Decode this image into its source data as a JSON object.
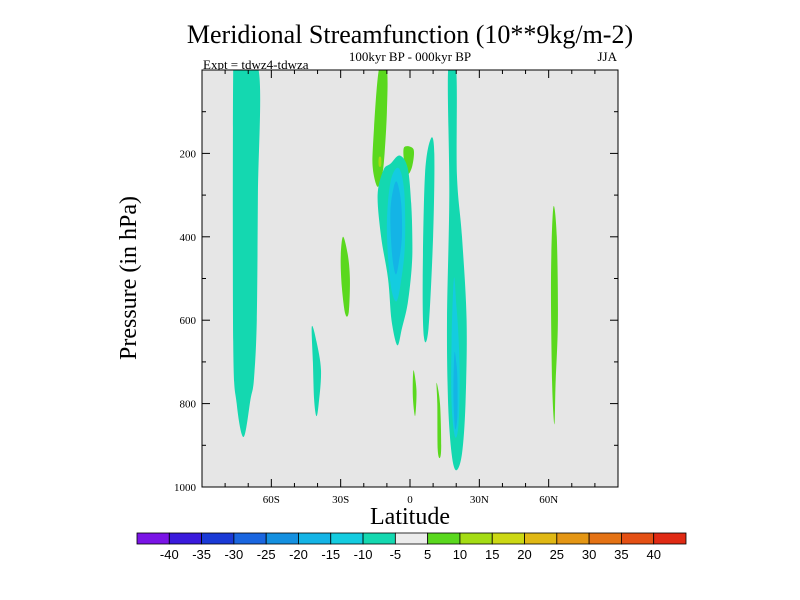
{
  "chart_data": {
    "type": "heatmap",
    "title": "Meridional Streamfunction (10**9kg/m-2)",
    "subtitle_center": "100kyr BP - 000kyr BP",
    "subtitle_left": "Expt = tdwz4-tdwza",
    "subtitle_right": "JJA",
    "xlabel": "Latitude",
    "ylabel": "Pressure (in hPa)",
    "xlim": [
      -90,
      90
    ],
    "ylim": [
      1000,
      0
    ],
    "x_ticks": [
      {
        "value": -60,
        "label": "60S"
      },
      {
        "value": -30,
        "label": "30S"
      },
      {
        "value": 0,
        "label": "0"
      },
      {
        "value": 30,
        "label": "30N"
      },
      {
        "value": 60,
        "label": "60N"
      }
    ],
    "y_ticks": [
      {
        "value": 200,
        "label": "200"
      },
      {
        "value": 400,
        "label": "400"
      },
      {
        "value": 600,
        "label": "600"
      },
      {
        "value": 800,
        "label": "800"
      },
      {
        "value": 1000,
        "label": "1000"
      }
    ],
    "background_color": "#e6e6e6",
    "colorbar": {
      "levels": [
        "-40",
        "-35",
        "-30",
        "-25",
        "-20",
        "-15",
        "-10",
        "-5",
        "5",
        "10",
        "15",
        "20",
        "25",
        "30",
        "35",
        "40"
      ],
      "colors": [
        "#7a14e6",
        "#3a1adc",
        "#1a3ad6",
        "#1a66e0",
        "#1490e0",
        "#14b4e6",
        "#14cce0",
        "#14d8b0",
        "#ececec",
        "#5ad81e",
        "#a4dc14",
        "#ccd814",
        "#e0b814",
        "#e49614",
        "#e47214",
        "#e45014",
        "#e02a14"
      ]
    },
    "regions": [
      {
        "name": "band-60s-neg",
        "value": -10,
        "color": "#14d8b0",
        "lat": [
          -75.5,
          -65.5,
          -65.8,
          -66.3,
          -67.5,
          -69.0,
          -72.0,
          -75.0,
          -76.5,
          -76.5
        ],
        "p": [
          0,
          0,
          300,
          600,
          740,
          790,
          880,
          800,
          650,
          0
        ]
      },
      {
        "name": "sh-midlat-neg",
        "value": -10,
        "color": "#14d8b0",
        "lat": [
          -42.5,
          -40.5,
          -38.5,
          -39.5,
          -40.5,
          -41.5,
          -42.0
        ],
        "p": [
          615,
          650,
          720,
          800,
          830,
          790,
          700
        ]
      },
      {
        "name": "sh-midlat-pos",
        "value": 10,
        "color": "#5ad81e",
        "lat": [
          -29.0,
          -27.0,
          -26.0,
          -26.5,
          -28.0,
          -29.5,
          -30.0
        ],
        "p": [
          400,
          440,
          500,
          580,
          585,
          520,
          450
        ]
      },
      {
        "name": "upper-trop-pos",
        "value": 10,
        "color": "#5ad81e",
        "lat": [
          -13.5,
          -10.0,
          -10.0,
          -11.0,
          -12.0,
          -14.0,
          -16.0,
          -16.0
        ],
        "p": [
          0,
          0,
          100,
          200,
          250,
          280,
          240,
          180
        ]
      },
      {
        "name": "upper-trop-pos-core",
        "value": 15,
        "color": "#a4dc14",
        "lat": [
          -13.5,
          -12.5,
          -12.5,
          -13.5
        ],
        "p": [
          210,
          210,
          230,
          230
        ]
      },
      {
        "name": "small-pos-cell",
        "value": 10,
        "color": "#5ad81e",
        "lat": [
          -2.5,
          1.5,
          1.0,
          -1.0,
          -2.5
        ],
        "p": [
          185,
          190,
          230,
          250,
          220
        ]
      },
      {
        "name": "equatorial-neg",
        "value": -10,
        "color": "#14d8b0",
        "lat": [
          -4.5,
          -1.0,
          0.5,
          1.0,
          0.8,
          -1.0,
          -3.5,
          -5.5,
          -8.0,
          -9.5,
          -12.5,
          -14.0,
          -11.5,
          -8.5
        ],
        "p": [
          205,
          235,
          320,
          400,
          470,
          560,
          620,
          660,
          600,
          500,
          400,
          300,
          240,
          225
        ]
      },
      {
        "name": "equatorial-neg-inner",
        "value": -15,
        "color": "#14cce0",
        "lat": [
          -5.0,
          -2.5,
          -2.2,
          -4.0,
          -6.0,
          -8.5,
          -10.0,
          -8.5
        ],
        "p": [
          235,
          290,
          420,
          510,
          555,
          510,
          380,
          270
        ]
      },
      {
        "name": "equatorial-neg-core",
        "value": -20,
        "color": "#14b4e6",
        "lat": [
          -5.5,
          -3.8,
          -3.5,
          -4.8,
          -6.2,
          -7.8,
          -8.5,
          -7.0
        ],
        "p": [
          270,
          320,
          400,
          460,
          490,
          440,
          340,
          280
        ]
      },
      {
        "name": "eq-north-neg",
        "value": -10,
        "color": "#14d8b0",
        "lat": [
          9.0,
          10.5,
          10.0,
          8.0,
          6.0,
          5.5,
          6.5
        ],
        "p": [
          165,
          200,
          400,
          620,
          640,
          500,
          250
        ]
      },
      {
        "name": "eq-lower-pos",
        "value": 10,
        "color": "#5ad81e",
        "lat": [
          1.5,
          2.8,
          2.2,
          1.2
        ],
        "p": [
          720,
          770,
          830,
          780
        ]
      },
      {
        "name": "nh-subtrop-neg",
        "value": -10,
        "color": "#14d8b0",
        "lat": [
          16.5,
          20.0,
          20.3,
          22.5,
          24.5,
          24.0,
          22.5,
          20.0,
          18.0,
          16.5,
          16.0,
          17.0
        ],
        "p": [
          0,
          0,
          250,
          400,
          600,
          800,
          920,
          960,
          920,
          800,
          600,
          300
        ]
      },
      {
        "name": "nh-subtrop-neg-inner",
        "value": -15,
        "color": "#14cce0",
        "lat": [
          19.0,
          20.0,
          21.0,
          21.5,
          21.0,
          19.5,
          18.0,
          18.0
        ],
        "p": [
          500,
          560,
          640,
          740,
          850,
          880,
          800,
          650
        ]
      },
      {
        "name": "nh-subtrop-neg-core",
        "value": -20,
        "color": "#14b4e6",
        "lat": [
          19.2,
          20.0,
          20.5,
          20.5,
          19.5,
          18.8
        ],
        "p": [
          680,
          700,
          740,
          830,
          860,
          780
        ]
      },
      {
        "name": "nh-lower-pos",
        "value": 10,
        "color": "#5ad81e",
        "lat": [
          11.5,
          13.0,
          13.5,
          13.0,
          12.0,
          11.8
        ],
        "p": [
          750,
          800,
          900,
          930,
          910,
          800
        ]
      },
      {
        "name": "nh-midlat-pos",
        "value": 10,
        "color": "#5ad81e",
        "lat": [
          62.0,
          63.5,
          64.0,
          63.0,
          62.5,
          61.5,
          61.0
        ],
        "p": [
          330,
          400,
          600,
          750,
          850,
          750,
          500
        ]
      }
    ]
  }
}
